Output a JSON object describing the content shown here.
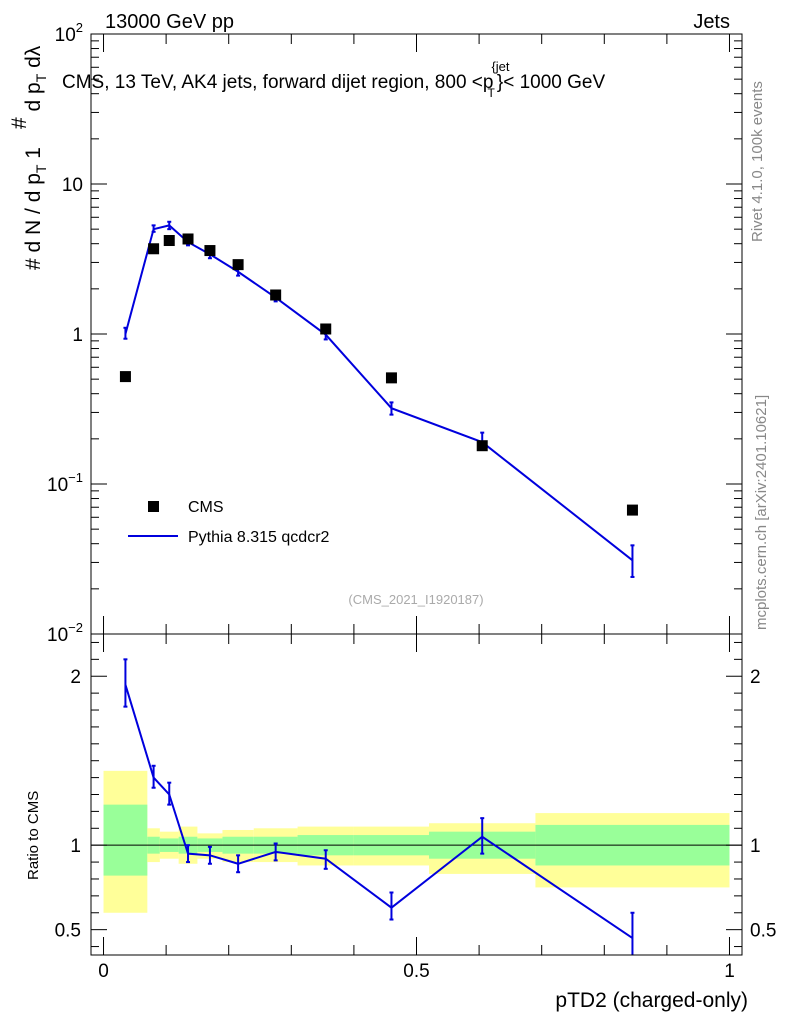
{
  "header": {
    "left": "13000 GeV pp",
    "right": "Jets",
    "subtitle": "CMS, 13 TeV, AK4 jets, forward dijet region, 800 <p",
    "subtitle_sup": "{jet",
    "subtitle_sub": "T",
    "subtitle_end": "}< 1000 GeV"
  },
  "side": {
    "rivet": "Rivet 4.1.0,  100k events",
    "mcplots": "mcplots.cern.ch [arXiv:2401.10621]"
  },
  "watermark": "(CMS_2021_I1920187)",
  "legend": {
    "data": "CMS",
    "mc": "Pythia 8.315 qcdcr2"
  },
  "colors": {
    "mc": "#0000dd",
    "data": "#000000",
    "band_inner": "#99ff99",
    "band_outer": "#ffff99"
  },
  "chart_data": [
    {
      "type": "scatter",
      "name": "main",
      "ylabel": "1/(dN/dpT) d²N/(dpT dλ)",
      "yscale": "log",
      "ylim": [
        0.01,
        100
      ],
      "xlim": [
        -0.02,
        1.02
      ],
      "ytick_labels": [
        {
          "v": 100,
          "base": "10",
          "exp": "2"
        },
        {
          "v": 10,
          "base": "10",
          "exp": ""
        },
        {
          "v": 1,
          "base": "1",
          "exp": ""
        },
        {
          "v": 0.1,
          "base": "10",
          "exp": "−1"
        },
        {
          "v": 0.01,
          "base": "10",
          "exp": "−2"
        }
      ],
      "data_points": [
        {
          "x": 0.035,
          "y": 0.52
        },
        {
          "x": 0.08,
          "y": 3.7
        },
        {
          "x": 0.105,
          "y": 4.2
        },
        {
          "x": 0.135,
          "y": 4.3
        },
        {
          "x": 0.17,
          "y": 3.6
        },
        {
          "x": 0.215,
          "y": 2.9
        },
        {
          "x": 0.275,
          "y": 1.82
        },
        {
          "x": 0.355,
          "y": 1.08
        },
        {
          "x": 0.46,
          "y": 0.51
        },
        {
          "x": 0.605,
          "y": 0.18
        },
        {
          "x": 0.845,
          "y": 0.067
        }
      ],
      "mc_series": [
        {
          "x": 0.035,
          "y": 1.0,
          "lo": 0.93,
          "hi": 1.1
        },
        {
          "x": 0.08,
          "y": 5.0,
          "lo": 4.8,
          "hi": 5.3
        },
        {
          "x": 0.105,
          "y": 5.3,
          "lo": 5.0,
          "hi": 5.6
        },
        {
          "x": 0.135,
          "y": 4.1,
          "lo": 3.9,
          "hi": 4.3
        },
        {
          "x": 0.17,
          "y": 3.4,
          "lo": 3.2,
          "hi": 3.6
        },
        {
          "x": 0.215,
          "y": 2.6,
          "lo": 2.45,
          "hi": 2.75
        },
        {
          "x": 0.275,
          "y": 1.75,
          "lo": 1.65,
          "hi": 1.85
        },
        {
          "x": 0.355,
          "y": 0.99,
          "lo": 0.92,
          "hi": 1.06
        },
        {
          "x": 0.46,
          "y": 0.32,
          "lo": 0.29,
          "hi": 0.35
        },
        {
          "x": 0.605,
          "y": 0.19,
          "lo": 0.17,
          "hi": 0.22
        },
        {
          "x": 0.845,
          "y": 0.031,
          "lo": 0.024,
          "hi": 0.039
        }
      ]
    },
    {
      "type": "scatter",
      "name": "ratio",
      "ylabel": "Ratio to CMS",
      "xlabel": "pTD2 (charged-only)",
      "xlim": [
        -0.02,
        1.02
      ],
      "ylim": [
        0.35,
        2.25
      ],
      "yticks": [
        {
          "v": 0.5,
          "label": "0.5"
        },
        {
          "v": 1,
          "label": "1"
        },
        {
          "v": 2,
          "label": "2"
        }
      ],
      "xticks": [
        {
          "v": 0,
          "label": "0"
        },
        {
          "v": 0.5,
          "label": "0.5"
        },
        {
          "v": 1,
          "label": "1"
        }
      ],
      "bands": [
        {
          "x0": 0.0,
          "x1": 0.07,
          "in_lo": 0.82,
          "in_hi": 1.24,
          "out_lo": 0.6,
          "out_hi": 1.44
        },
        {
          "x0": 0.07,
          "x1": 0.09,
          "in_lo": 0.95,
          "in_hi": 1.05,
          "out_lo": 0.9,
          "out_hi": 1.1
        },
        {
          "x0": 0.09,
          "x1": 0.12,
          "in_lo": 0.96,
          "in_hi": 1.04,
          "out_lo": 0.92,
          "out_hi": 1.08
        },
        {
          "x0": 0.12,
          "x1": 0.15,
          "in_lo": 0.95,
          "in_hi": 1.05,
          "out_lo": 0.89,
          "out_hi": 1.11
        },
        {
          "x0": 0.15,
          "x1": 0.19,
          "in_lo": 0.96,
          "in_hi": 1.04,
          "out_lo": 0.92,
          "out_hi": 1.07
        },
        {
          "x0": 0.19,
          "x1": 0.24,
          "in_lo": 0.95,
          "in_hi": 1.05,
          "out_lo": 0.9,
          "out_hi": 1.09
        },
        {
          "x0": 0.24,
          "x1": 0.31,
          "in_lo": 0.95,
          "in_hi": 1.05,
          "out_lo": 0.9,
          "out_hi": 1.1
        },
        {
          "x0": 0.31,
          "x1": 0.4,
          "in_lo": 0.94,
          "in_hi": 1.06,
          "out_lo": 0.88,
          "out_hi": 1.11
        },
        {
          "x0": 0.4,
          "x1": 0.52,
          "in_lo": 0.94,
          "in_hi": 1.06,
          "out_lo": 0.88,
          "out_hi": 1.11
        },
        {
          "x0": 0.52,
          "x1": 0.69,
          "in_lo": 0.92,
          "in_hi": 1.08,
          "out_lo": 0.83,
          "out_hi": 1.13
        },
        {
          "x0": 0.69,
          "x1": 1.0,
          "in_lo": 0.88,
          "in_hi": 1.12,
          "out_lo": 0.75,
          "out_hi": 1.19
        }
      ],
      "mc_series": [
        {
          "x": 0.035,
          "y": 1.95,
          "lo": 1.82,
          "hi": 2.1
        },
        {
          "x": 0.08,
          "y": 1.4,
          "lo": 1.34,
          "hi": 1.47
        },
        {
          "x": 0.105,
          "y": 1.3,
          "lo": 1.24,
          "hi": 1.37
        },
        {
          "x": 0.135,
          "y": 0.95,
          "lo": 0.9,
          "hi": 1.0
        },
        {
          "x": 0.17,
          "y": 0.94,
          "lo": 0.89,
          "hi": 0.99
        },
        {
          "x": 0.215,
          "y": 0.89,
          "lo": 0.84,
          "hi": 0.94
        },
        {
          "x": 0.275,
          "y": 0.96,
          "lo": 0.91,
          "hi": 1.01
        },
        {
          "x": 0.355,
          "y": 0.92,
          "lo": 0.86,
          "hi": 0.97
        },
        {
          "x": 0.46,
          "y": 0.63,
          "lo": 0.56,
          "hi": 0.72
        },
        {
          "x": 0.605,
          "y": 1.05,
          "lo": 0.95,
          "hi": 1.16
        },
        {
          "x": 0.845,
          "y": 0.45,
          "lo": 0.34,
          "hi": 0.6
        }
      ]
    }
  ]
}
